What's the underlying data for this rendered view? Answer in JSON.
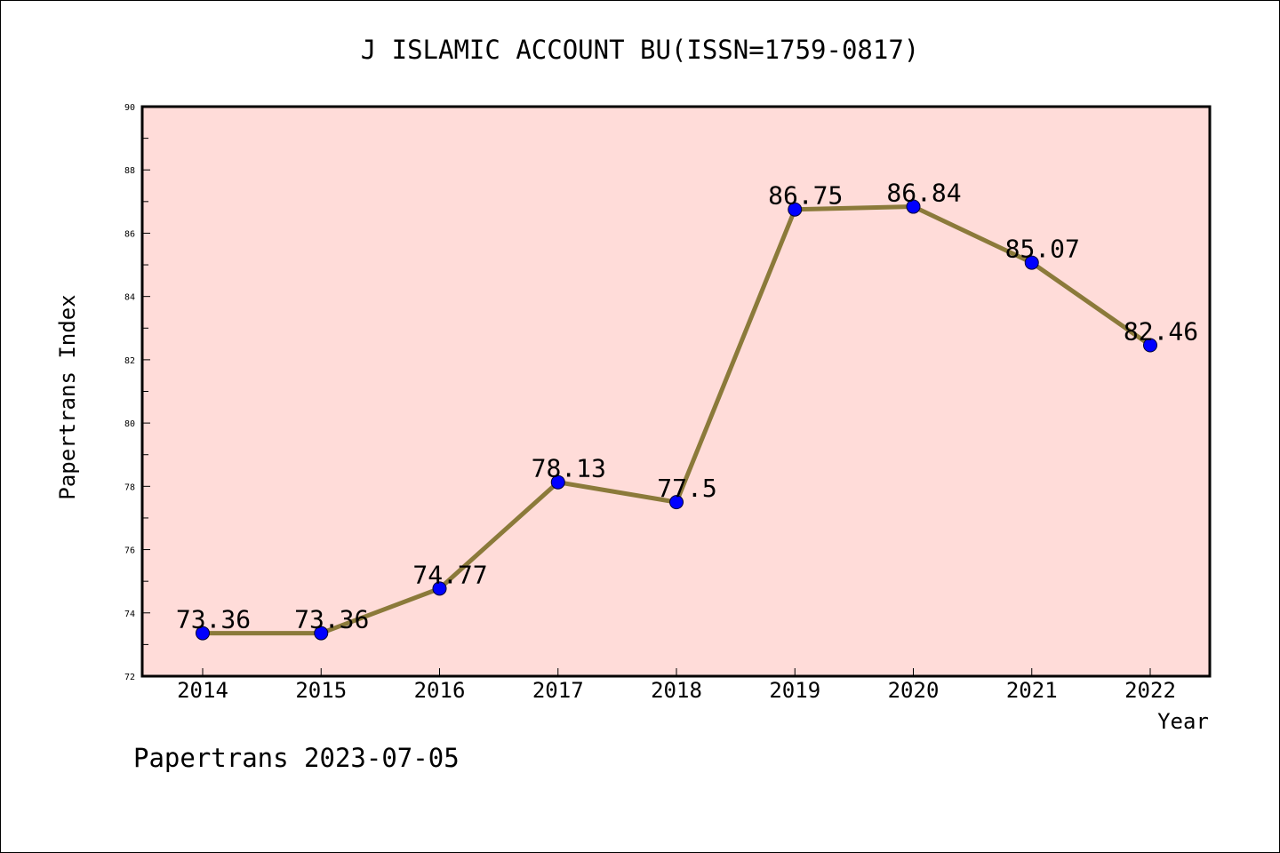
{
  "chart_data": {
    "type": "line",
    "title": "J ISLAMIC ACCOUNT BU(ISSN=1759-0817)",
    "xlabel": "Year",
    "ylabel": "Papertrans Index",
    "x": [
      "2014",
      "2015",
      "2016",
      "2017",
      "2018",
      "2019",
      "2020",
      "2021",
      "2022"
    ],
    "series": [
      {
        "values": [
          73.36,
          73.36,
          74.77,
          78.13,
          77.5,
          86.75,
          86.84,
          85.07,
          82.46
        ],
        "labels": [
          "73.36",
          "73.36",
          "74.77",
          "78.13",
          "77.5",
          "86.75",
          "86.84",
          "85.07",
          "82.46"
        ],
        "line_color": "#8b7a3a",
        "marker_color": "#0000ff"
      }
    ],
    "ylim": [
      72,
      90
    ],
    "yticks": [
      "72",
      "74",
      "76",
      "78",
      "80",
      "82",
      "84",
      "86",
      "88",
      "90"
    ],
    "grid": false,
    "plot_background": "#ffdcd9",
    "footer": "Papertrans 2023-07-05"
  }
}
